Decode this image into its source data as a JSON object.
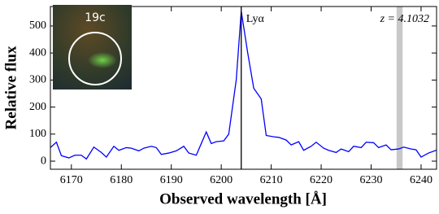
{
  "chart_data": {
    "type": "line",
    "x_label": "Observed wavelength [Å]",
    "y_label": "Relative flux",
    "line_label": "Lyα",
    "redshift_label": "z = 4.1032",
    "inset_label": "19c",
    "x": [
      6165.8,
      6167,
      6168,
      6169.5,
      6170.7,
      6172,
      6173,
      6174.5,
      6176,
      6177,
      6178.5,
      6179.5,
      6181,
      6182,
      6183.5,
      6184.5,
      6186,
      6187,
      6188,
      6189.5,
      6191,
      6192.5,
      6193.5,
      6195,
      6196,
      6197,
      6198,
      6199,
      6200.5,
      6201.5,
      6203,
      6204,
      6205.3,
      6206.5,
      6208,
      6209,
      6210.5,
      6211.5,
      6213,
      6214,
      6215.5,
      6216.5,
      6218,
      6219,
      6220.5,
      6221.5,
      6223,
      6224,
      6225.5,
      6226.5,
      6228,
      6229,
      6230.5,
      6231.5,
      6233,
      6234,
      6235.5,
      6236.5,
      6238,
      6239,
      6240,
      6241.5,
      6243
    ],
    "series": [
      {
        "color": "#0000ff",
        "values": [
          50,
          70,
          20,
          12,
          22,
          22,
          8,
          52,
          32,
          15,
          55,
          40,
          50,
          48,
          38,
          48,
          55,
          50,
          25,
          30,
          38,
          55,
          30,
          22,
          65,
          108,
          65,
          72,
          75,
          100,
          300,
          555,
          400,
          270,
          230,
          95,
          90,
          88,
          78,
          60,
          72,
          40,
          55,
          70,
          48,
          40,
          32,
          45,
          35,
          55,
          50,
          70,
          68,
          50,
          60,
          42,
          45,
          52,
          45,
          42,
          15,
          30,
          40
        ]
      }
    ],
    "vline": 6204,
    "shaded_band": [
      6235.1,
      6236.3
    ],
    "xlim": [
      6165.8,
      6243.1
    ],
    "ylim": [
      -30,
      572
    ],
    "xticks": [
      6170,
      6180,
      6190,
      6200,
      6210,
      6220,
      6230,
      6240
    ],
    "yticks": [
      0,
      100,
      200,
      300,
      400,
      500
    ]
  }
}
